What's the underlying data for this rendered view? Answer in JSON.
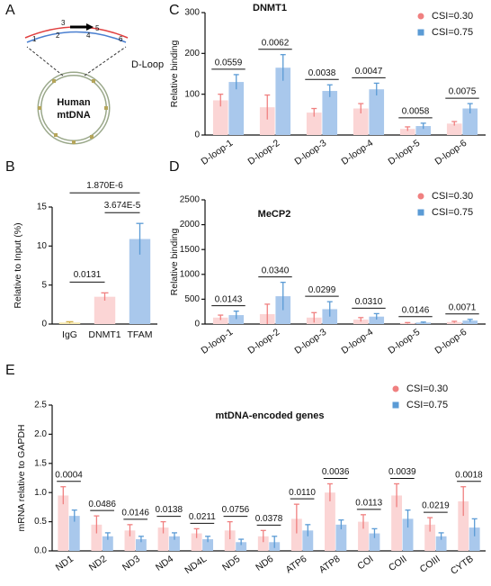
{
  "diagram": {
    "panel": "A",
    "markers": [
      "1",
      "2",
      "3",
      "4",
      "5",
      "6"
    ],
    "dloop": "D-Loop",
    "center": [
      "Human",
      "mtDNA"
    ]
  },
  "chart_data": [
    {
      "type": "bar",
      "panel": "B",
      "ylabel": "Relative to Input (%)",
      "categories": [
        "IgG",
        "DNMT1",
        "TFAM"
      ],
      "values": [
        0.2,
        3.5,
        10.9
      ],
      "errors": [
        0.1,
        0.5,
        2
      ],
      "colors": [
        "#f6e7ad",
        "#fbd5d5",
        "#a9c8ec"
      ],
      "edge_colors": [
        "#d4b24a",
        "#f08080",
        "#5b9bd5"
      ],
      "ylim": [
        0,
        15
      ],
      "yticks": [
        0,
        5,
        10,
        15
      ],
      "annotations": [
        "0.0131",
        "3.674E-5",
        "1.870E-6"
      ]
    },
    {
      "type": "grouped",
      "panel": "C",
      "title": "DNMT1",
      "ylabel": "Relative binding",
      "categories": [
        "D-loop-1",
        "D-loop-2",
        "D-loop-3",
        "D-loop-4",
        "D-loop-5",
        "D-loop-6"
      ],
      "series": [
        {
          "name": "CSI=0.30",
          "color": "#fbd5d5",
          "edge": "#f08080",
          "values": [
            85,
            68,
            55,
            65,
            15,
            28
          ],
          "errors": [
            15,
            30,
            10,
            12,
            5,
            5
          ]
        },
        {
          "name": "CSI=0.75",
          "color": "#a9c8ec",
          "edge": "#5b9bd5",
          "values": [
            130,
            165,
            108,
            112,
            22,
            65
          ],
          "errors": [
            18,
            32,
            15,
            15,
            7,
            12
          ]
        }
      ],
      "p_values": [
        "0.0559",
        "0.0062",
        "0.0038",
        "0.0047",
        "0.0058",
        "0.0075"
      ],
      "ylim": [
        0,
        300
      ],
      "yticks": [
        0,
        100,
        200,
        300
      ]
    },
    {
      "type": "grouped",
      "panel": "D",
      "title": "MeCP2",
      "ylabel": "Relative binding",
      "categories": [
        "D-loop-1",
        "D-loop-2",
        "D-loop-3",
        "D-loop-4",
        "D-loop-5",
        "D-loop-6"
      ],
      "series": [
        {
          "name": "CSI=0.30",
          "color": "#fbd5d5",
          "edge": "#f08080",
          "values": [
            130,
            200,
            130,
            90,
            20,
            40
          ],
          "errors": [
            50,
            200,
            100,
            40,
            10,
            15
          ]
        },
        {
          "name": "CSI=0.75",
          "color": "#a9c8ec",
          "edge": "#5b9bd5",
          "values": [
            180,
            560,
            300,
            150,
            30,
            70
          ],
          "errors": [
            80,
            280,
            150,
            60,
            10,
            25
          ]
        }
      ],
      "p_values": [
        "0.0143",
        "0.0340",
        "0.0299",
        "0.0310",
        "0.0146",
        "0.0071"
      ],
      "ylim": [
        0,
        2500
      ],
      "yticks": [
        0,
        500,
        1000,
        1500,
        2000,
        2500
      ]
    },
    {
      "type": "grouped",
      "panel": "E",
      "title": "mtDNA-encoded genes",
      "ylabel": "mRNA relative to GAPDH",
      "categories": [
        "ND1",
        "ND2",
        "ND3",
        "ND4",
        "ND4L",
        "ND5",
        "ND6",
        "ATP6",
        "ATP8",
        "COI",
        "COII",
        "COIII",
        "CYTB"
      ],
      "series": [
        {
          "name": "CSI=0.30",
          "color": "#fbd5d5",
          "edge": "#f08080",
          "values": [
            0.95,
            0.45,
            0.35,
            0.4,
            0.3,
            0.35,
            0.25,
            0.55,
            1.0,
            0.5,
            0.95,
            0.45,
            0.85
          ],
          "errors": [
            0.15,
            0.15,
            0.1,
            0.1,
            0.08,
            0.15,
            0.1,
            0.25,
            0.15,
            0.12,
            0.2,
            0.12,
            0.25
          ]
        },
        {
          "name": "CSI=0.75",
          "color": "#a9c8ec",
          "edge": "#5b9bd5",
          "values": [
            0.6,
            0.25,
            0.2,
            0.25,
            0.2,
            0.15,
            0.15,
            0.35,
            0.45,
            0.3,
            0.55,
            0.25,
            0.4
          ],
          "errors": [
            0.1,
            0.06,
            0.05,
            0.06,
            0.05,
            0.05,
            0.1,
            0.1,
            0.08,
            0.08,
            0.15,
            0.06,
            0.15
          ]
        }
      ],
      "p_values": [
        "0.0004",
        "0.0486",
        "0.0146",
        "0.0138",
        "0.0211",
        "0.0756",
        "0.0378",
        "0.0110",
        "0.0036",
        "0.0113",
        "0.0039",
        "0.0219",
        "0.0018"
      ],
      "ylim": [
        0,
        2.5
      ],
      "yticks": [
        {
          "value": 0,
          "label": "0.0"
        },
        0.5,
        {
          "value": 1,
          "label": "1.0"
        },
        1.5,
        {
          "value": 2,
          "label": "2.0"
        },
        2.5
      ]
    }
  ]
}
